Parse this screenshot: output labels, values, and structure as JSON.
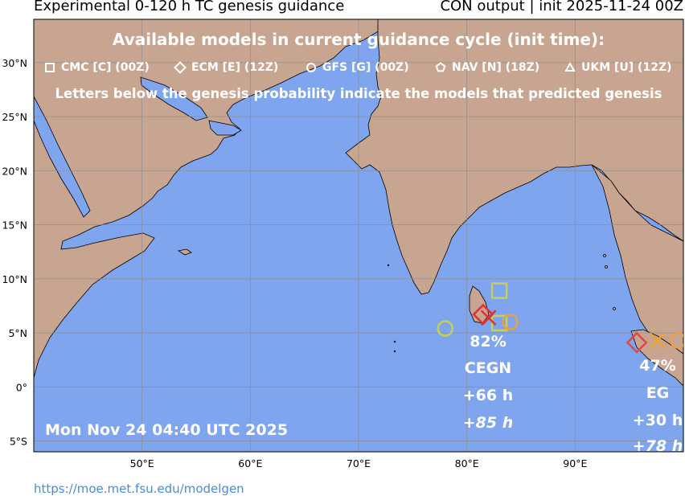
{
  "header": {
    "title_left": "Experimental 0-120 h TC genesis guidance",
    "title_right": "CON output | init 2025-11-24 00Z"
  },
  "legend": {
    "heading": "Available models in current guidance cycle (init time):",
    "models": [
      {
        "symbol": "square",
        "label": "CMC [C] (00Z)"
      },
      {
        "symbol": "diamond",
        "label": "ECM [E] (12Z)"
      },
      {
        "symbol": "circle",
        "label": "GFS [G] (00Z)"
      },
      {
        "symbol": "pentagon",
        "label": "NAV [N] (18Z)"
      },
      {
        "symbol": "triangle",
        "label": "UKM [U] (12Z)"
      }
    ],
    "note": "Letters below the genesis probability indicate the models that predicted genesis"
  },
  "axes": {
    "lat_labels": [
      "30°N",
      "25°N",
      "20°N",
      "15°N",
      "10°N",
      "5°N",
      "0°",
      "5°S"
    ],
    "lon_labels": [
      "50°E",
      "60°E",
      "70°E",
      "80°E",
      "90°E"
    ]
  },
  "timestamp": "Mon Nov 24 04:40 UTC 2025",
  "systems": [
    {
      "probability": "82%",
      "models": "CEGN",
      "first_time": "+66 h",
      "last_time": "+85 h"
    },
    {
      "probability": "47%",
      "models": "EG",
      "first_time": "+30 h",
      "last_time": "+78 h"
    }
  ],
  "markers": [
    {
      "symbol": "square",
      "lon": 83.0,
      "lat": 8.9,
      "color": "#c8cf55"
    },
    {
      "symbol": "square",
      "lon": 83.0,
      "lat": 5.9,
      "color": "#c8cf55"
    },
    {
      "symbol": "circle",
      "lon": 78.0,
      "lat": 5.4,
      "color": "#c8cf55"
    },
    {
      "symbol": "circle",
      "lon": 84.0,
      "lat": 6.0,
      "color": "#e8a040"
    },
    {
      "symbol": "diamond",
      "lon": 81.5,
      "lat": 6.7,
      "color": "#e03030"
    },
    {
      "symbol": "cross",
      "lon": 82.0,
      "lat": 6.4,
      "color": "#e03030"
    },
    {
      "symbol": "diamond",
      "lon": 95.7,
      "lat": 4.1,
      "color": "#e04848"
    },
    {
      "symbol": "cross",
      "lon": 97.6,
      "lat": 4.3,
      "color": "#f5a020"
    },
    {
      "symbol": "circle",
      "lon": 99.5,
      "lat": 4.3,
      "color": "#e8a040"
    }
  ],
  "credit": "https://moe.met.fsu.edu/modelgen",
  "colors": {
    "ocean": "#7fa5ee",
    "land": "#c8a591",
    "grid": "#8c8c8c"
  }
}
